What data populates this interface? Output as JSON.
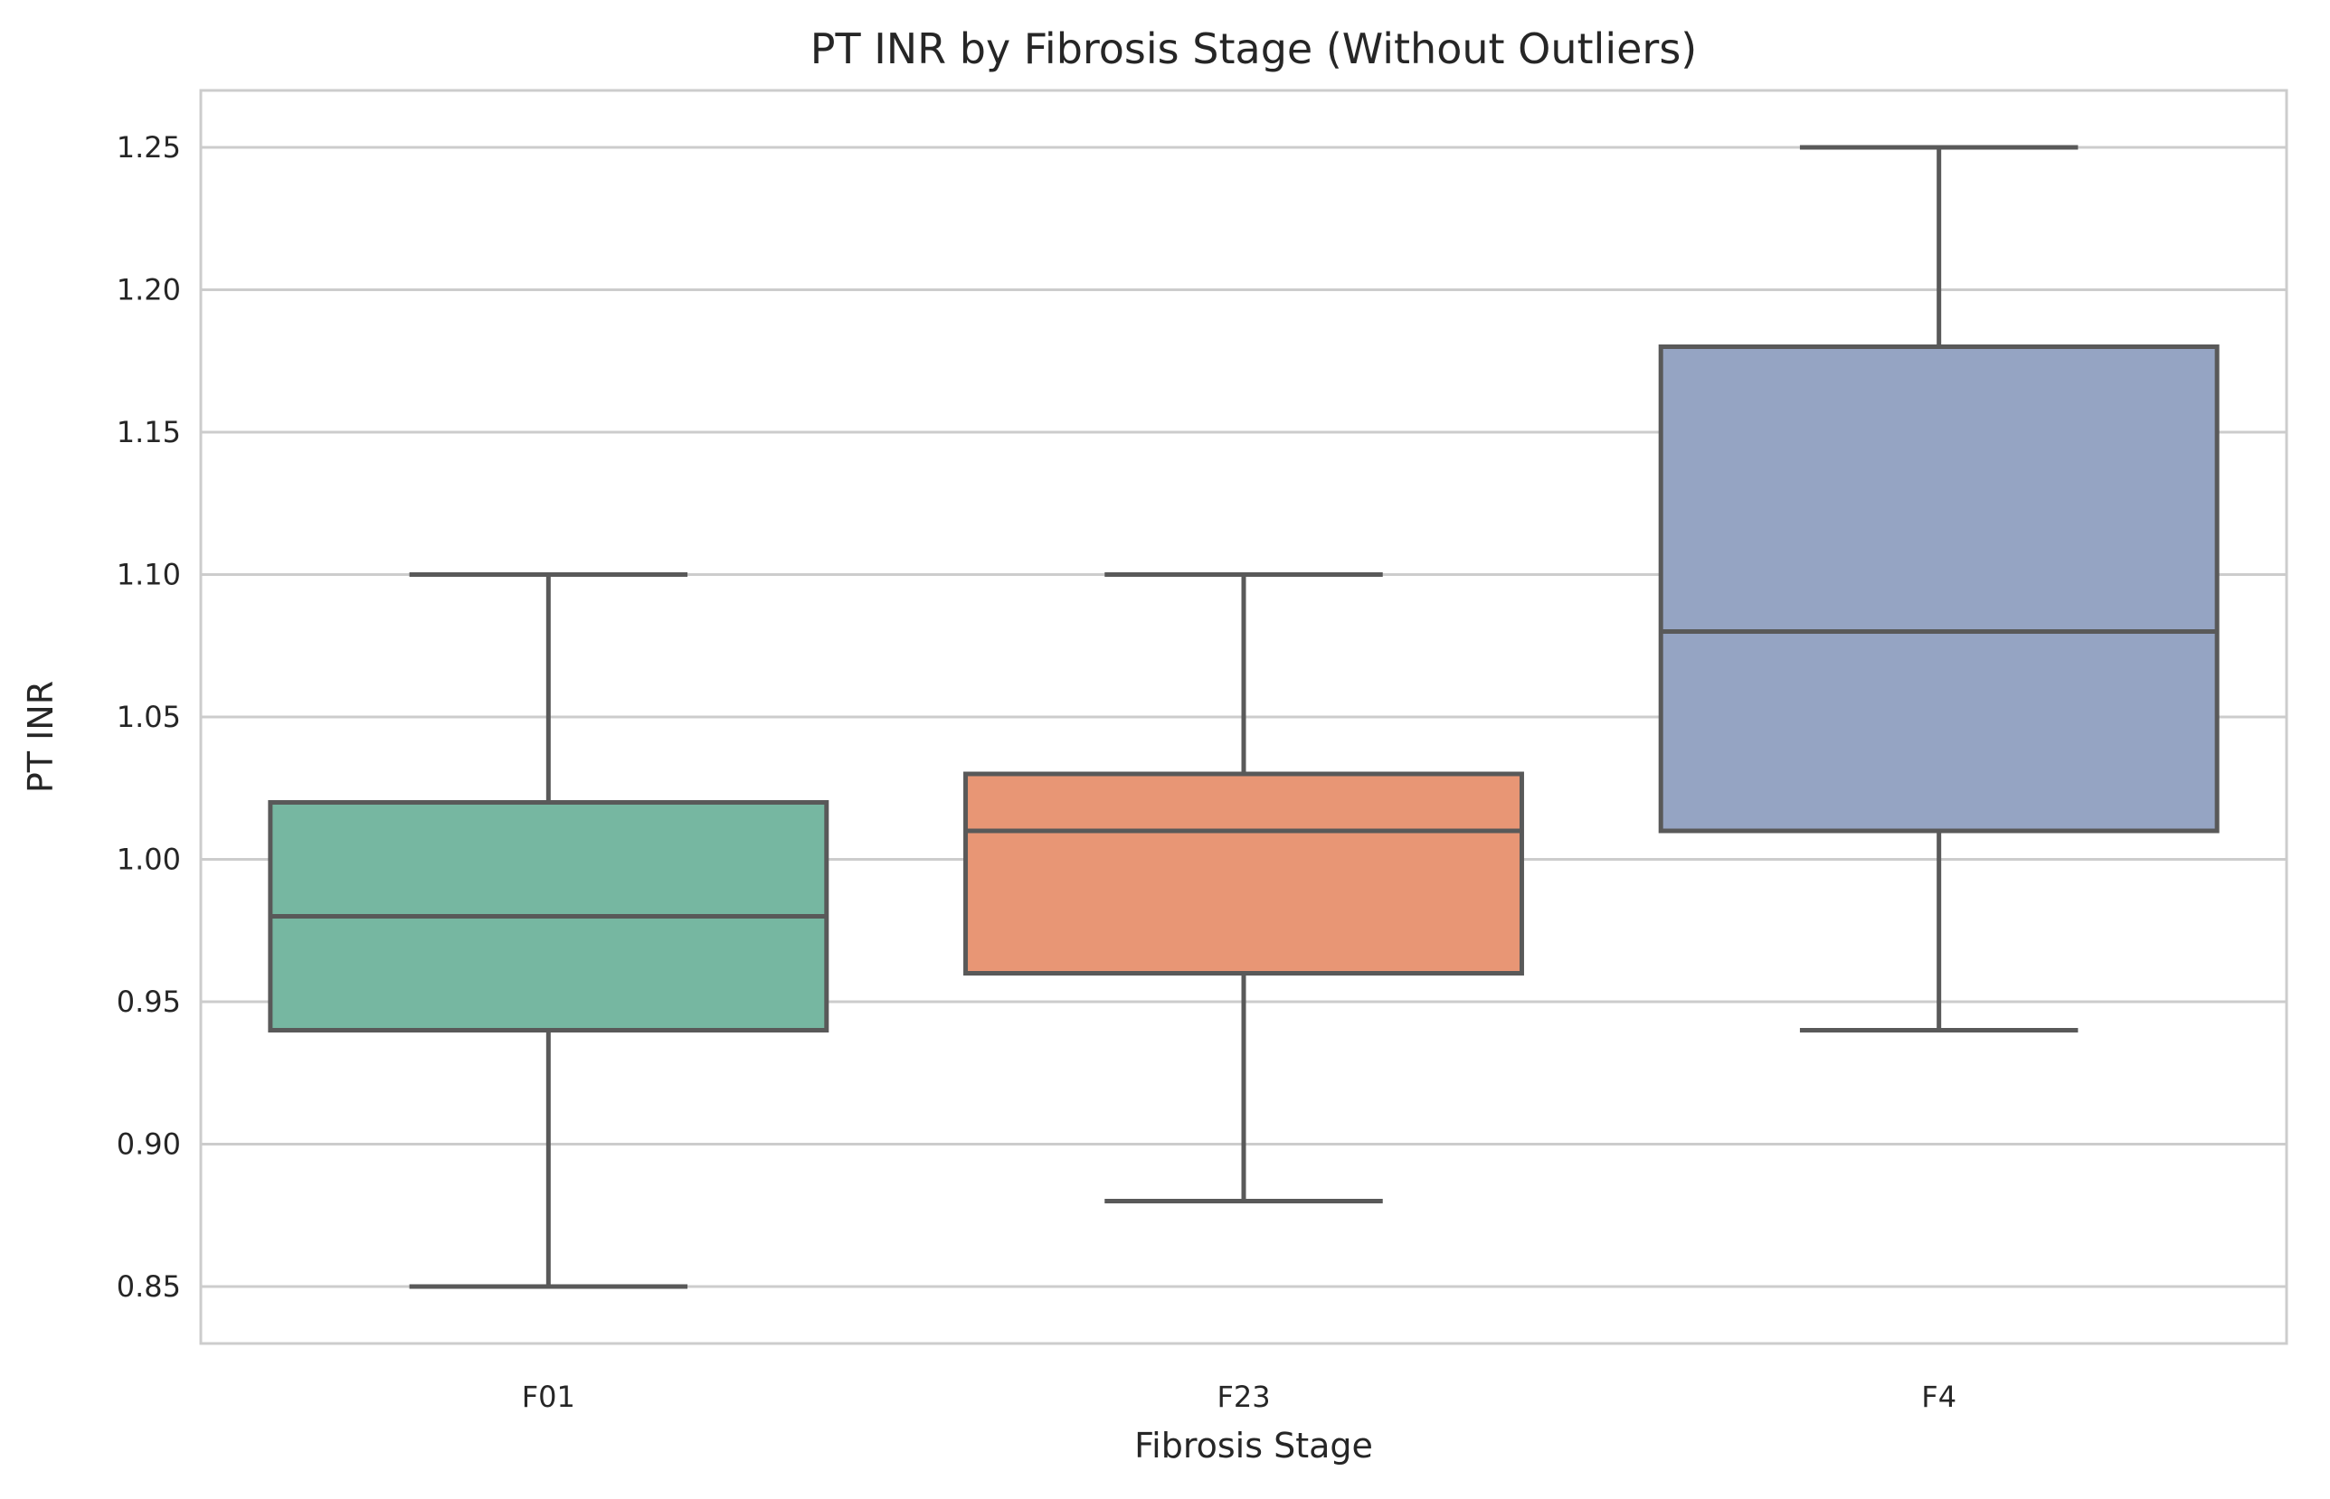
{
  "chart_data": {
    "type": "box",
    "title": "PT INR by Fibrosis Stage (Without Outliers)",
    "xlabel": "Fibrosis Stage",
    "ylabel": "PT INR",
    "categories": [
      "F01",
      "F23",
      "F4"
    ],
    "ylim": [
      0.83,
      1.27
    ],
    "yticks": [
      "0.85",
      "0.90",
      "0.95",
      "1.00",
      "1.05",
      "1.10",
      "1.15",
      "1.20",
      "1.25"
    ],
    "grid": true,
    "legend": "none",
    "series": [
      {
        "category": "F01",
        "whisker_low": 0.85,
        "q1": 0.94,
        "median": 0.98,
        "q3": 1.02,
        "whisker_high": 1.1,
        "color": "#76b7a1"
      },
      {
        "category": "F23",
        "whisker_low": 0.88,
        "q1": 0.96,
        "median": 1.01,
        "q3": 1.03,
        "whisker_high": 1.1,
        "color": "#e89675"
      },
      {
        "category": "F4",
        "whisker_low": 0.94,
        "q1": 1.01,
        "median": 1.08,
        "q3": 1.18,
        "whisker_high": 1.25,
        "color": "#95a4c3"
      }
    ],
    "colors": {
      "line": "#595959",
      "grid": "#cccccc",
      "frame": "#cccccc"
    }
  }
}
